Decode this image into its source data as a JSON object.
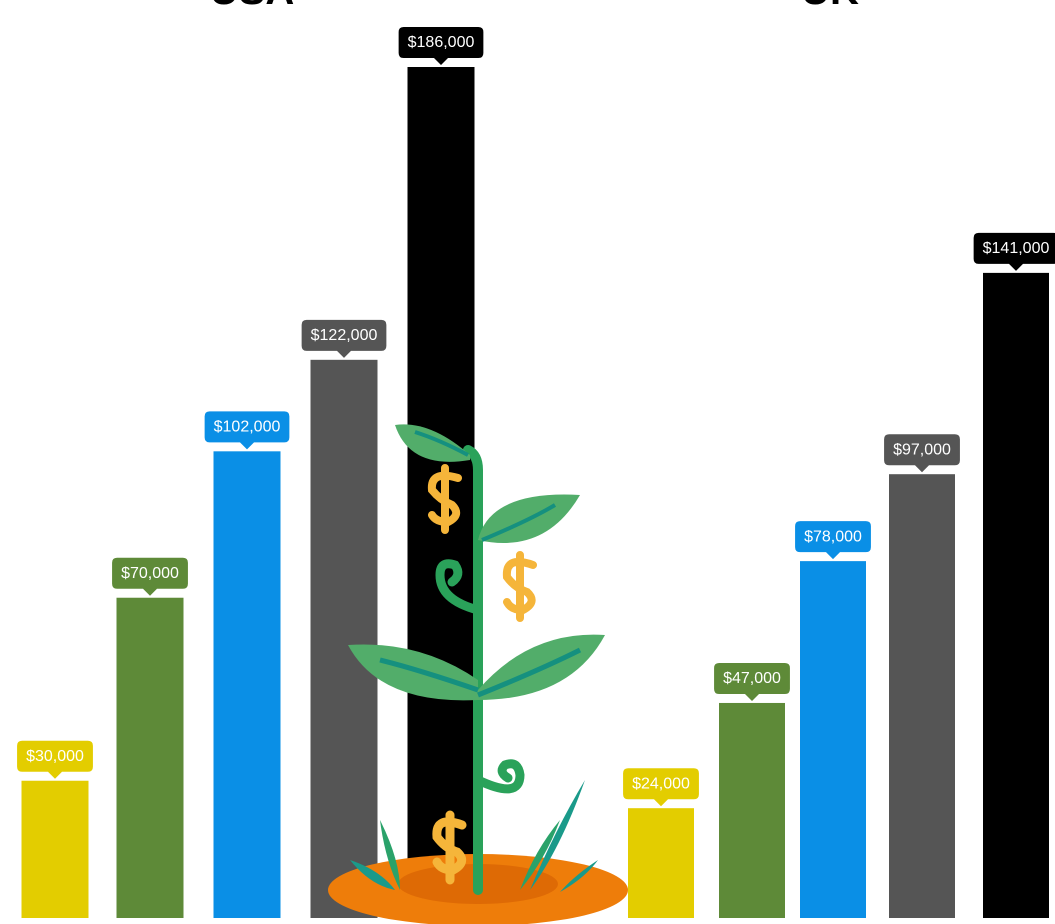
{
  "chart_data": [
    {
      "type": "bar",
      "title": "USA",
      "values": [
        30000,
        70000,
        102000,
        122000,
        186000
      ],
      "value_labels": [
        "$30,000",
        "$70,000",
        "$102,000",
        "$122,000",
        "$186,000"
      ],
      "colors": [
        "#e3cd00",
        "#5e8a38",
        "#0a8fe6",
        "#555555",
        "#000000"
      ]
    },
    {
      "type": "bar",
      "title": "UK",
      "values": [
        24000,
        47000,
        78000,
        97000,
        141000
      ],
      "value_labels": [
        "$24,000",
        "$47,000",
        "$78,000",
        "$97,000",
        "$141,000"
      ],
      "colors": [
        "#e3cd00",
        "#5e8a38",
        "#0a8fe6",
        "#555555",
        "#000000"
      ]
    }
  ]
}
